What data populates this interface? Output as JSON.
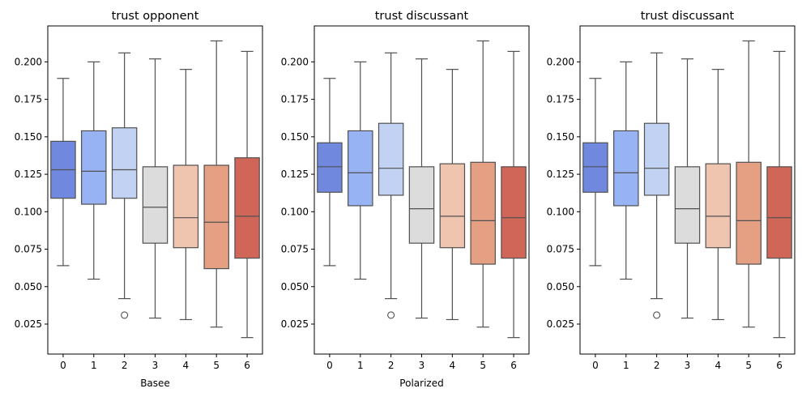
{
  "chart_data": [
    {
      "type": "box",
      "title": "trust opponent",
      "xlabel": "Basee",
      "ylabel": "",
      "categories": [
        "0",
        "1",
        "2",
        "3",
        "4",
        "5",
        "6"
      ],
      "ylim": [
        0.005,
        0.224
      ],
      "yticks": [
        "0.025",
        "0.050",
        "0.075",
        "0.100",
        "0.125",
        "0.150",
        "0.175",
        "0.200"
      ],
      "boxes": [
        {
          "min": 0.064,
          "q1": 0.109,
          "median": 0.128,
          "q3": 0.147,
          "max": 0.189,
          "outliers": []
        },
        {
          "min": 0.055,
          "q1": 0.105,
          "median": 0.127,
          "q3": 0.154,
          "max": 0.2,
          "outliers": []
        },
        {
          "min": 0.042,
          "q1": 0.109,
          "median": 0.128,
          "q3": 0.156,
          "max": 0.206,
          "outliers": [
            0.031
          ]
        },
        {
          "min": 0.029,
          "q1": 0.079,
          "median": 0.103,
          "q3": 0.13,
          "max": 0.202,
          "outliers": []
        },
        {
          "min": 0.028,
          "q1": 0.076,
          "median": 0.096,
          "q3": 0.131,
          "max": 0.195,
          "outliers": []
        },
        {
          "min": 0.023,
          "q1": 0.062,
          "median": 0.093,
          "q3": 0.131,
          "max": 0.214,
          "outliers": []
        },
        {
          "min": 0.016,
          "q1": 0.069,
          "median": 0.097,
          "q3": 0.136,
          "max": 0.207,
          "outliers": []
        }
      ]
    },
    {
      "type": "box",
      "title": "trust discussant",
      "xlabel": "Polarized",
      "ylabel": "",
      "categories": [
        "0",
        "1",
        "2",
        "3",
        "4",
        "5",
        "6"
      ],
      "ylim": [
        0.005,
        0.224
      ],
      "yticks": [
        "0.025",
        "0.050",
        "0.075",
        "0.100",
        "0.125",
        "0.150",
        "0.175",
        "0.200"
      ],
      "boxes": [
        {
          "min": 0.064,
          "q1": 0.113,
          "median": 0.13,
          "q3": 0.146,
          "max": 0.189,
          "outliers": []
        },
        {
          "min": 0.055,
          "q1": 0.104,
          "median": 0.126,
          "q3": 0.154,
          "max": 0.2,
          "outliers": []
        },
        {
          "min": 0.042,
          "q1": 0.111,
          "median": 0.129,
          "q3": 0.159,
          "max": 0.206,
          "outliers": [
            0.031
          ]
        },
        {
          "min": 0.029,
          "q1": 0.079,
          "median": 0.102,
          "q3": 0.13,
          "max": 0.202,
          "outliers": []
        },
        {
          "min": 0.028,
          "q1": 0.076,
          "median": 0.097,
          "q3": 0.132,
          "max": 0.195,
          "outliers": []
        },
        {
          "min": 0.023,
          "q1": 0.065,
          "median": 0.094,
          "q3": 0.133,
          "max": 0.214,
          "outliers": []
        },
        {
          "min": 0.016,
          "q1": 0.069,
          "median": 0.096,
          "q3": 0.13,
          "max": 0.207,
          "outliers": []
        }
      ]
    },
    {
      "type": "box",
      "title": "trust discussant",
      "xlabel": "",
      "ylabel": "",
      "categories": [
        "0",
        "1",
        "2",
        "3",
        "4",
        "5",
        "6"
      ],
      "ylim": [
        0.005,
        0.224
      ],
      "yticks": [
        "0.025",
        "0.050",
        "0.075",
        "0.100",
        "0.125",
        "0.150",
        "0.175",
        "0.200"
      ],
      "boxes": [
        {
          "min": 0.064,
          "q1": 0.113,
          "median": 0.13,
          "q3": 0.146,
          "max": 0.189,
          "outliers": []
        },
        {
          "min": 0.055,
          "q1": 0.104,
          "median": 0.126,
          "q3": 0.154,
          "max": 0.2,
          "outliers": []
        },
        {
          "min": 0.042,
          "q1": 0.111,
          "median": 0.129,
          "q3": 0.159,
          "max": 0.206,
          "outliers": [
            0.031
          ]
        },
        {
          "min": 0.029,
          "q1": 0.079,
          "median": 0.102,
          "q3": 0.13,
          "max": 0.202,
          "outliers": []
        },
        {
          "min": 0.028,
          "q1": 0.076,
          "median": 0.097,
          "q3": 0.132,
          "max": 0.195,
          "outliers": []
        },
        {
          "min": 0.023,
          "q1": 0.065,
          "median": 0.094,
          "q3": 0.133,
          "max": 0.214,
          "outliers": []
        },
        {
          "min": 0.016,
          "q1": 0.069,
          "median": 0.096,
          "q3": 0.13,
          "max": 0.207,
          "outliers": []
        }
      ]
    }
  ],
  "colors": {
    "palette": [
      "#7088de",
      "#98b3f3",
      "#c2d2f2",
      "#dcdcdc",
      "#efc5b0",
      "#e59f83",
      "#cf6657"
    ],
    "line": "#505050",
    "axis": "#000000"
  }
}
